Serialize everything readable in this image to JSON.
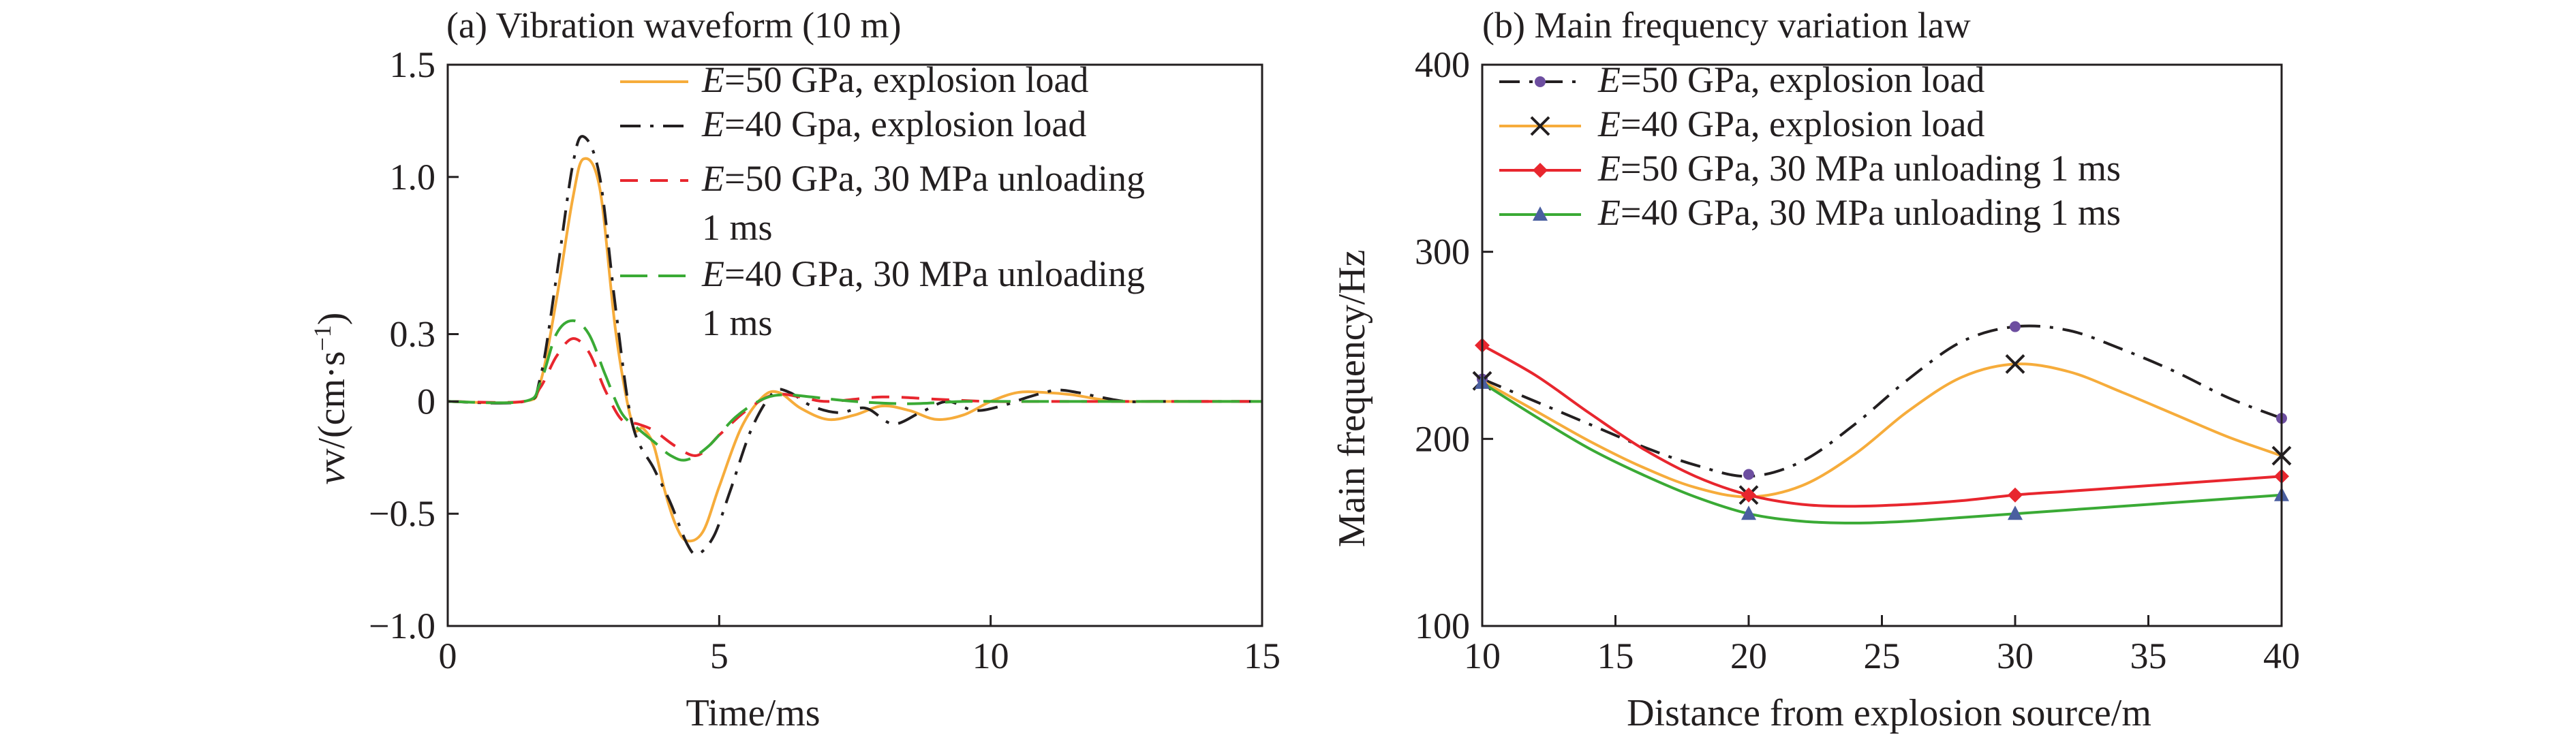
{
  "chart_data": [
    {
      "type": "line",
      "title": "(a) Vibration waveform (10 m)",
      "xlabel": "Time/ms",
      "ylabel_pre": "v/(cm·s",
      "ylabel_sup": "−1",
      "ylabel_post": ")",
      "xlim": [
        0,
        15
      ],
      "ylim": [
        -1.0,
        1.5
      ],
      "x_ticks": [
        0,
        5,
        10,
        15
      ],
      "x_tick_labels": [
        "0",
        "5",
        "10",
        "15"
      ],
      "y_ticks": [
        -1.0,
        -0.5,
        0,
        0.3,
        1.0,
        1.5
      ],
      "y_tick_labels": [
        "−1.0",
        "−0.5",
        "0",
        "0.3",
        "1.0",
        "1.5"
      ],
      "grid": false,
      "legend_position": "top-right",
      "series": [
        {
          "name": "E=50 GPa, explosion load",
          "legend_lines": [
            "E=50 GPa, explosion load"
          ],
          "color": "#f6ac3b",
          "dash": "solid",
          "x": [
            0,
            1.4,
            1.7,
            2.0,
            2.3,
            2.5,
            2.8,
            3.1,
            3.4,
            3.6,
            3.8,
            4.0,
            4.2,
            4.4,
            4.7,
            5.0,
            5.4,
            5.8,
            6.1,
            6.5,
            7.0,
            7.5,
            8.0,
            8.5,
            9.0,
            9.5,
            10.0,
            10.5,
            11.0,
            11.5,
            12.0,
            12.5,
            13.0,
            14.0,
            15.0
          ],
          "y": [
            0,
            0,
            0.08,
            0.45,
            0.9,
            1.08,
            0.95,
            0.3,
            -0.1,
            -0.12,
            -0.2,
            -0.4,
            -0.55,
            -0.62,
            -0.58,
            -0.38,
            -0.12,
            0.02,
            0.04,
            -0.03,
            -0.08,
            -0.06,
            -0.02,
            -0.04,
            -0.08,
            -0.06,
            0.0,
            0.04,
            0.04,
            0.03,
            0.01,
            0.0,
            0.0,
            0.0,
            0.0
          ]
        },
        {
          "name": "E=40 Gpa, explosion load",
          "legend_lines": [
            "E=40 Gpa, explosion load"
          ],
          "color": "#231f20",
          "dash": "dashdot",
          "x": [
            0,
            1.4,
            1.7,
            2.0,
            2.3,
            2.5,
            2.8,
            3.1,
            3.4,
            3.8,
            4.1,
            4.4,
            4.6,
            4.9,
            5.2,
            5.6,
            6.0,
            6.3,
            6.7,
            7.2,
            7.7,
            8.2,
            8.7,
            9.2,
            9.7,
            10.2,
            10.7,
            11.2,
            11.6,
            12.0,
            12.5,
            13.0,
            14.0,
            15.0
          ],
          "y": [
            0,
            0,
            0.1,
            0.55,
            1.05,
            1.18,
            1.0,
            0.4,
            -0.1,
            -0.3,
            -0.45,
            -0.63,
            -0.68,
            -0.6,
            -0.4,
            -0.12,
            0.04,
            0.04,
            -0.02,
            -0.05,
            -0.03,
            -0.1,
            -0.05,
            0.0,
            -0.04,
            -0.02,
            0.02,
            0.05,
            0.04,
            0.02,
            0.0,
            0.0,
            0.0,
            0.0
          ]
        },
        {
          "name": "E=50 GPa, 30 MPa unloading 1 ms",
          "legend_lines": [
            "E=50 GPa, 30 MPa unloading",
            "1 ms"
          ],
          "color": "#e8262e",
          "dash": "dashed",
          "x": [
            0,
            1.4,
            1.7,
            2.0,
            2.3,
            2.6,
            2.9,
            3.2,
            3.5,
            3.8,
            4.2,
            4.6,
            5.0,
            5.5,
            6.0,
            6.5,
            7.0,
            8.0,
            9.0,
            10.0,
            11.0,
            12.0,
            13.0,
            14.0,
            15.0
          ],
          "y": [
            0,
            0,
            0.06,
            0.2,
            0.28,
            0.22,
            0.05,
            -0.08,
            -0.1,
            -0.13,
            -0.2,
            -0.24,
            -0.15,
            -0.04,
            0.03,
            0.02,
            0.0,
            0.02,
            0.01,
            0.0,
            0.0,
            0.0,
            0.0,
            0.0,
            0.0
          ]
        },
        {
          "name": "E=40 GPa, 30 MPa unloading 1 ms",
          "legend_lines": [
            "E=40 GPa, 30 MPa unloading",
            "1 ms"
          ],
          "color": "#3aaa35",
          "dash": "longdash",
          "x": [
            0,
            1.4,
            1.7,
            2.0,
            2.3,
            2.6,
            2.9,
            3.2,
            3.5,
            3.8,
            4.1,
            4.4,
            4.8,
            5.3,
            5.8,
            6.2,
            6.7,
            7.5,
            8.5,
            9.5,
            10.5,
            11.5,
            12.5,
            13.5,
            15.0
          ],
          "y": [
            0,
            0,
            0.08,
            0.3,
            0.36,
            0.3,
            0.12,
            -0.05,
            -0.12,
            -0.18,
            -0.24,
            -0.26,
            -0.2,
            -0.07,
            0.01,
            0.03,
            0.02,
            0.0,
            -0.01,
            0.0,
            0.0,
            0.0,
            0.0,
            0.0,
            0.0
          ]
        }
      ]
    },
    {
      "type": "line",
      "title": "(b) Main frequency variation law",
      "xlabel": "Distance from explosion source/m",
      "ylabel": "Main frequency/Hz",
      "xlim": [
        10,
        40
      ],
      "ylim": [
        100,
        400
      ],
      "x_ticks": [
        10,
        15,
        20,
        25,
        30,
        35,
        40
      ],
      "x_tick_labels": [
        "10",
        "15",
        "20",
        "25",
        "30",
        "35",
        "40"
      ],
      "y_ticks": [
        100,
        200,
        300,
        400
      ],
      "y_tick_labels": [
        "100",
        "200",
        "300",
        "400"
      ],
      "grid": false,
      "legend_position": "top-left",
      "series": [
        {
          "name": "E=50 GPa, explosion load",
          "color": "#231f20",
          "marker_color": "#6d4ea0",
          "dash": "dashdot",
          "marker": "dot",
          "x": [
            10,
            20,
            30,
            40
          ],
          "y": [
            232,
            181,
            260,
            211
          ],
          "curve_x": [
            10,
            12,
            14,
            16,
            18,
            20,
            22,
            24,
            26,
            28,
            30,
            32,
            34,
            36,
            38,
            40
          ],
          "curve_y": [
            232,
            220,
            208,
            196,
            186,
            180,
            188,
            208,
            232,
            252,
            260,
            258,
            248,
            236,
            222,
            211
          ]
        },
        {
          "name": "E=40 GPa, explosion load",
          "color": "#f6ac3b",
          "marker_color": "#231f20",
          "dash": "solid",
          "marker": "x",
          "x": [
            10,
            20,
            30,
            40
          ],
          "y": [
            231,
            170,
            240,
            191
          ],
          "curve_x": [
            10,
            12,
            14,
            16,
            18,
            20,
            22,
            24,
            26,
            28,
            30,
            32,
            34,
            36,
            38,
            40
          ],
          "curve_y": [
            231,
            215,
            199,
            185,
            174,
            169,
            175,
            192,
            215,
            233,
            240,
            236,
            225,
            213,
            201,
            191
          ]
        },
        {
          "name": "E=50 GPa, 30 MPa unloading 1 ms",
          "color": "#e8262e",
          "marker_color": "#e8262e",
          "dash": "solid",
          "marker": "diamond",
          "x": [
            10,
            20,
            30,
            40
          ],
          "y": [
            250,
            170,
            170,
            180
          ],
          "curve_x": [
            10,
            12,
            14,
            16,
            18,
            20,
            22,
            24,
            26,
            28,
            30,
            32,
            34,
            36,
            38,
            40
          ],
          "curve_y": [
            250,
            234,
            214,
            195,
            180,
            170,
            165,
            164,
            165,
            167,
            170,
            172,
            174,
            176,
            178,
            180
          ]
        },
        {
          "name": "E=40 GPa, 30 MPa unloading 1 ms",
          "color": "#3aaa35",
          "marker_color": "#4a5fa0",
          "dash": "solid",
          "marker": "triangle",
          "x": [
            10,
            20,
            30,
            40
          ],
          "y": [
            230,
            160,
            160,
            170
          ],
          "curve_x": [
            10,
            12,
            14,
            16,
            18,
            20,
            22,
            24,
            26,
            28,
            30,
            32,
            34,
            36,
            38,
            40
          ],
          "curve_y": [
            230,
            212,
            195,
            181,
            169,
            160,
            156,
            155,
            156,
            158,
            160,
            162,
            164,
            166,
            168,
            170
          ]
        }
      ]
    }
  ]
}
